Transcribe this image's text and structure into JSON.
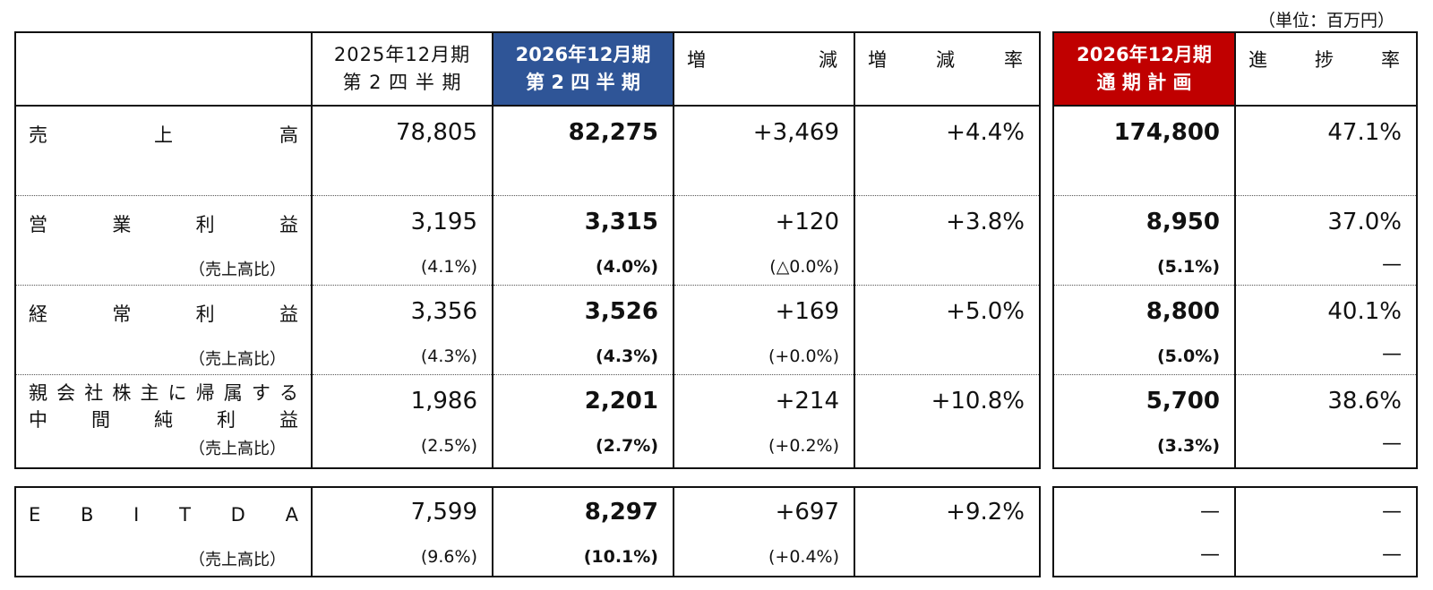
{
  "unit_note": "（単位：百万円）",
  "headers": {
    "prev": [
      "2025年12月期",
      "第 2 四 半 期"
    ],
    "curr": [
      "2026年12月期",
      "第 2 四 半 期"
    ],
    "diff": [
      "増",
      "減"
    ],
    "rate": [
      "増",
      "減",
      "率"
    ],
    "plan": [
      "2026年12月期",
      "通 期 計 画"
    ],
    "progress": [
      "進",
      "捗",
      "率"
    ]
  },
  "ratio_label": "（売上高比）",
  "rows": [
    {
      "label_chars": [
        "売",
        "上",
        "高"
      ],
      "prev": "78,805",
      "curr": "82,275",
      "diff": "+3,469",
      "rate": "+4.4%",
      "plan": "174,800",
      "progress": "47.1%"
    },
    {
      "label_chars": [
        "営",
        "業",
        "利",
        "益"
      ],
      "prev": "3,195",
      "curr": "3,315",
      "diff": "+120",
      "rate": "+3.8%",
      "plan": "8,950",
      "progress": "37.0%",
      "ratio": {
        "prev": "(4.1%)",
        "curr": "(4.0%)",
        "diff": "(△0.0%)",
        "plan": "(5.1%)",
        "progress": "—"
      }
    },
    {
      "label_chars": [
        "経",
        "常",
        "利",
        "益"
      ],
      "prev": "3,356",
      "curr": "3,526",
      "diff": "+169",
      "rate": "+5.0%",
      "plan": "8,800",
      "progress": "40.1%",
      "ratio": {
        "prev": "(4.3%)",
        "curr": "(4.3%)",
        "diff": "(+0.0%)",
        "plan": "(5.0%)",
        "progress": "—"
      }
    },
    {
      "label_line1_chars": [
        "親",
        "会",
        "社",
        "株",
        "主",
        "に",
        "帰",
        "属",
        "す",
        "る"
      ],
      "label_line2_chars": [
        "中",
        "間",
        "純",
        "利",
        "益"
      ],
      "prev": "1,986",
      "curr": "2,201",
      "diff": "+214",
      "rate": "+10.8%",
      "plan": "5,700",
      "progress": "38.6%",
      "ratio": {
        "prev": "(2.5%)",
        "curr": "(2.7%)",
        "diff": "(+0.2%)",
        "plan": "(3.3%)",
        "progress": "—"
      }
    }
  ],
  "ebitda": {
    "label_chars": [
      "E",
      "B",
      "I",
      "T",
      "D",
      "A"
    ],
    "prev": "7,599",
    "curr": "8,297",
    "diff": "+697",
    "rate": "+9.2%",
    "plan": "—",
    "progress": "—",
    "ratio": {
      "prev": "(9.6%)",
      "curr": "(10.1%)",
      "diff": "(+0.4%)",
      "plan": "—",
      "progress": "—"
    }
  },
  "colors": {
    "current_header": "#2F5597",
    "plan_header": "#C00000"
  }
}
